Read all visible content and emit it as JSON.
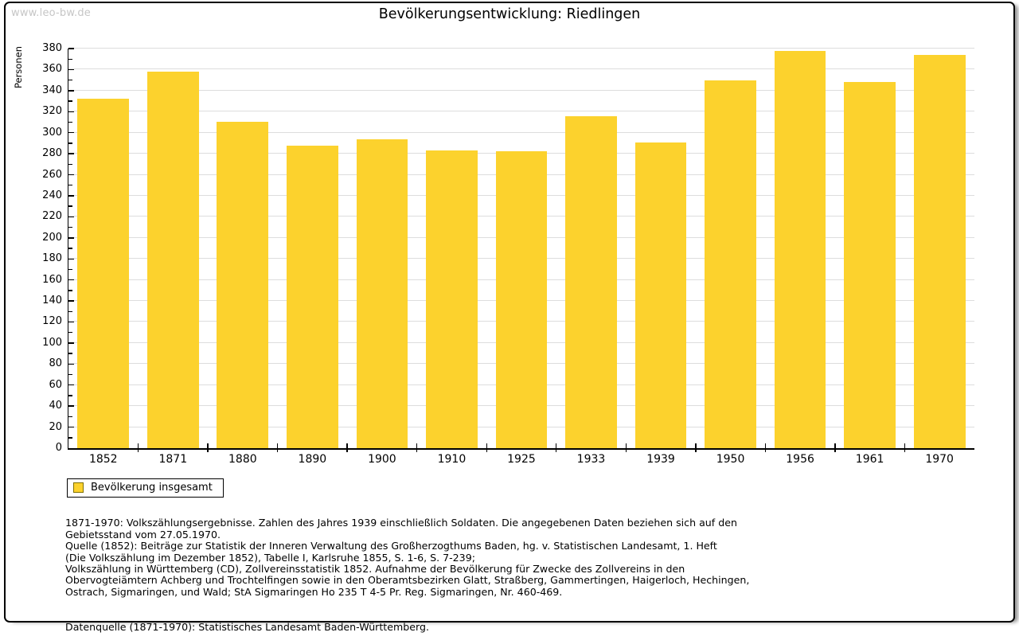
{
  "watermark": "www.leo-bw.de",
  "chart_data": {
    "type": "bar",
    "title": "Bevölkerungsentwicklung: Riedlingen",
    "ylabel": "Personen",
    "xlabel": "",
    "categories": [
      "1852",
      "1871",
      "1880",
      "1890",
      "1900",
      "1910",
      "1925",
      "1933",
      "1939",
      "1950",
      "1956",
      "1961",
      "1970"
    ],
    "values": [
      332,
      358,
      310,
      288,
      294,
      283,
      282,
      316,
      291,
      350,
      378,
      348,
      374
    ],
    "ylim": [
      0,
      380
    ],
    "ytick_step": 20,
    "yminor_step": 10,
    "grid": true,
    "legend": {
      "label": "Bevölkerung insgesamt",
      "position": "bottom-left"
    }
  },
  "colors": {
    "bar": "#FCD22D",
    "grid": "#DDDDDD",
    "axis": "#000000",
    "watermark": "#C6C6C6",
    "legend_swatch_border": "#807000",
    "frame_border": "#000000"
  },
  "footer": {
    "note": "1871-1970: Volkszählungsergebnisse. Zahlen des Jahres 1939 einschließlich Soldaten. Die angegebenen Daten beziehen sich auf den\nGebietsstand vom 27.05.1970.\nQuelle (1852): Beiträge zur Statistik der Inneren Verwaltung des Großherzogthums Baden, hg. v. Statistischen Landesamt, 1. Heft\n(Die Volkszählung im Dezember 1852), Tabelle I, Karlsruhe 1855, S. 1-6, S. 7-239;\nVolkszählung in Württemberg (CD), Zollvereinsstatistik 1852. Aufnahme der Bevölkerung für Zwecke des Zollvereins in den\nObervogteiämtern Achberg und Trochtelfingen sowie in den Oberamtsbezirken Glatt, Straßberg, Gammertingen, Haigerloch, Hechingen,\nOstrach, Sigmaringen, und Wald; StA Sigmaringen Ho 235 T 4-5 Pr. Reg. Sigmaringen, Nr. 460-469.",
    "datasource": "Datenquelle (1871-1970): Statistisches Landesamt Baden-Württemberg."
  }
}
